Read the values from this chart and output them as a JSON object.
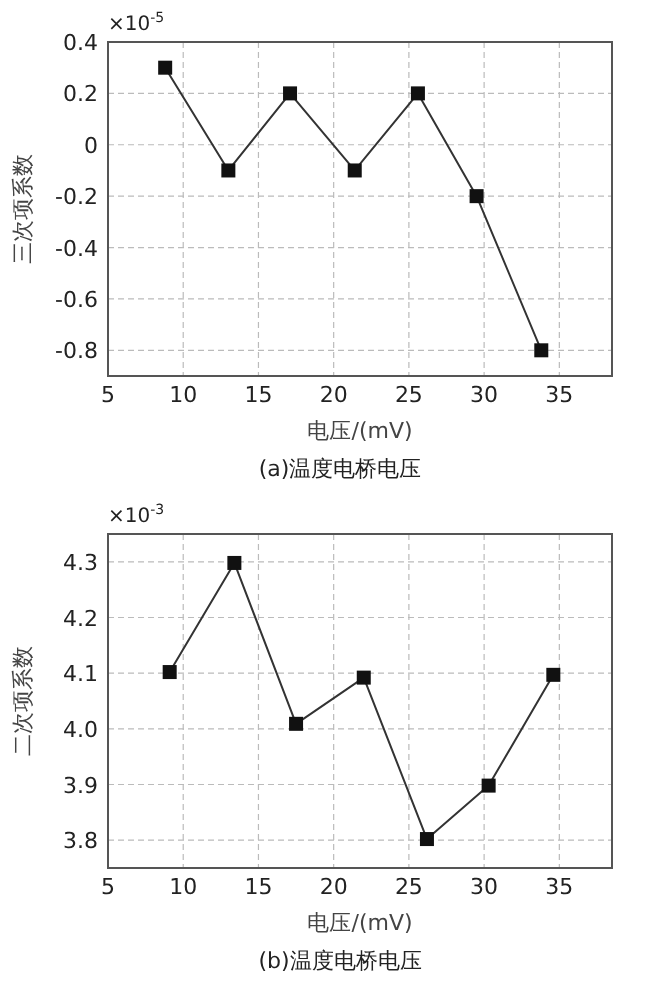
{
  "chart_data": [
    {
      "type": "line",
      "title": "(a)温度电桥电压",
      "xlabel": "电压/(mV)",
      "ylabel": "三次项系数",
      "annotations": [
        "×10$^{-5}$"
      ],
      "xlim": [
        5,
        38.5
      ],
      "xticks": [
        5,
        10,
        15,
        20,
        25,
        30,
        35
      ],
      "ylim": [
        -0.9,
        0.4
      ],
      "yticks": [
        0.4,
        0.2,
        0,
        -0.2,
        -0.4,
        -0.6,
        -0.8
      ],
      "grid": true,
      "marker": "square",
      "line_style": "solid",
      "series": [
        {
          "color": "#333333",
          "x": [
            8.8,
            13.0,
            17.1,
            21.4,
            25.6,
            29.5,
            33.8
          ],
          "values": [
            0.3,
            -0.1,
            0.2,
            -0.1,
            0.2,
            -0.2,
            -0.8
          ]
        }
      ]
    },
    {
      "type": "line",
      "title": "(b)温度电桥电压",
      "xlabel": "电压/(mV)",
      "ylabel": "二次项系数",
      "annotations": [
        "×10$^{-3}$"
      ],
      "xlim": [
        5,
        38.5
      ],
      "xticks": [
        5,
        10,
        15,
        20,
        25,
        30,
        35
      ],
      "ylim": [
        3.75,
        4.35
      ],
      "yticks": [
        {
          "value": 3.8,
          "label": "3.8"
        },
        {
          "value": 3.9,
          "label": "3.9"
        },
        {
          "value": 4,
          "label": "4.0"
        },
        {
          "value": 4.1,
          "label": "4.1"
        },
        {
          "value": 4.2,
          "label": "4.2"
        },
        {
          "value": 4.3,
          "label": "4.3"
        }
      ],
      "grid": true,
      "marker": "square",
      "line_style": "solid",
      "series": [
        {
          "color": "#333333",
          "x": [
            9.1,
            13.4,
            17.5,
            22.0,
            26.2,
            30.3,
            34.6
          ],
          "values": [
            4.102,
            4.298,
            4.009,
            4.092,
            3.802,
            3.898,
            4.097
          ]
        }
      ]
    }
  ]
}
